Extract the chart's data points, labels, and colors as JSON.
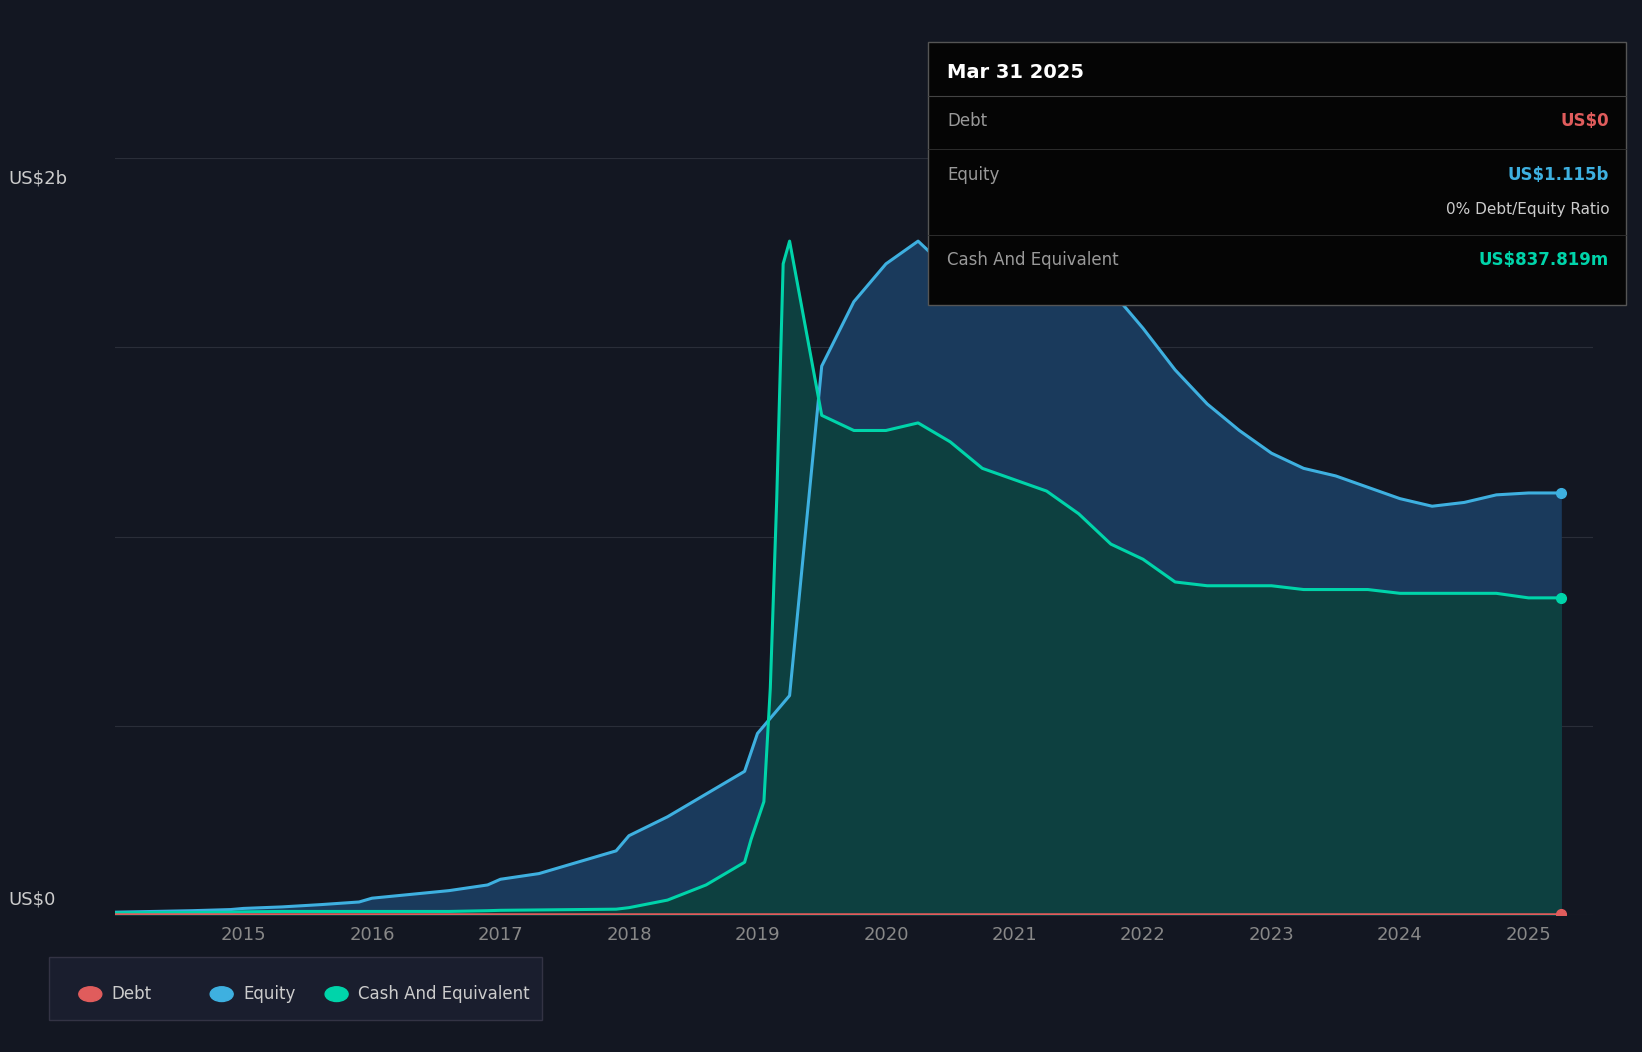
{
  "bg_color": "#131722",
  "plot_bg_color": "#131722",
  "grid_color": "#2a2e39",
  "debt_color": "#e05c5c",
  "equity_color": "#3eb0e0",
  "cash_color": "#00d4aa",
  "equity_fill_color": "#1a3a5c",
  "cash_fill_color": "#0d4040",
  "tooltip": {
    "date": "Mar 31 2025",
    "debt_label": "Debt",
    "debt_value": "US$0",
    "debt_value_color": "#e05c5c",
    "equity_label": "Equity",
    "equity_value": "US$1.115b",
    "equity_value_color": "#3eb0e0",
    "ratio_text": "0% Debt/Equity Ratio",
    "cash_label": "Cash And Equivalent",
    "cash_value": "US$837.819m",
    "cash_value_color": "#00d4aa"
  },
  "years": [
    2014.0,
    2014.3,
    2014.6,
    2014.9,
    2015.0,
    2015.3,
    2015.6,
    2015.9,
    2016.0,
    2016.3,
    2016.6,
    2016.9,
    2017.0,
    2017.3,
    2017.6,
    2017.9,
    2018.0,
    2018.3,
    2018.6,
    2018.9,
    2018.95,
    2019.0,
    2019.05,
    2019.1,
    2019.15,
    2019.2,
    2019.25,
    2019.5,
    2019.75,
    2020.0,
    2020.25,
    2020.5,
    2020.75,
    2021.0,
    2021.25,
    2021.5,
    2021.75,
    2022.0,
    2022.25,
    2022.5,
    2022.75,
    2023.0,
    2023.25,
    2023.5,
    2023.75,
    2024.0,
    2024.25,
    2024.5,
    2024.75,
    2025.0,
    2025.25
  ],
  "debt": [
    0.003,
    0.003,
    0.003,
    0.003,
    0.003,
    0.003,
    0.003,
    0.003,
    0.003,
    0.003,
    0.003,
    0.003,
    0.003,
    0.003,
    0.003,
    0.003,
    0.003,
    0.003,
    0.003,
    0.003,
    0.003,
    0.003,
    0.003,
    0.003,
    0.003,
    0.003,
    0.003,
    0.003,
    0.003,
    0.003,
    0.003,
    0.003,
    0.003,
    0.003,
    0.003,
    0.003,
    0.003,
    0.003,
    0.003,
    0.003,
    0.003,
    0.003,
    0.003,
    0.003,
    0.003,
    0.003,
    0.003,
    0.003,
    0.003,
    0.003,
    0.003
  ],
  "equity": [
    0.008,
    0.01,
    0.012,
    0.015,
    0.018,
    0.022,
    0.028,
    0.035,
    0.045,
    0.055,
    0.065,
    0.08,
    0.095,
    0.11,
    0.14,
    0.17,
    0.21,
    0.26,
    0.32,
    0.38,
    0.43,
    0.48,
    0.5,
    0.52,
    0.54,
    0.56,
    0.58,
    1.45,
    1.62,
    1.72,
    1.78,
    1.7,
    1.62,
    1.74,
    1.82,
    1.74,
    1.65,
    1.55,
    1.44,
    1.35,
    1.28,
    1.22,
    1.18,
    1.16,
    1.13,
    1.1,
    1.08,
    1.09,
    1.11,
    1.115,
    1.115
  ],
  "cash": [
    0.006,
    0.007,
    0.007,
    0.008,
    0.009,
    0.01,
    0.01,
    0.01,
    0.01,
    0.01,
    0.01,
    0.012,
    0.013,
    0.014,
    0.015,
    0.016,
    0.02,
    0.04,
    0.08,
    0.14,
    0.2,
    0.25,
    0.3,
    0.6,
    1.1,
    1.72,
    1.78,
    1.32,
    1.28,
    1.28,
    1.3,
    1.25,
    1.18,
    1.15,
    1.12,
    1.06,
    0.98,
    0.94,
    0.88,
    0.87,
    0.87,
    0.87,
    0.86,
    0.86,
    0.86,
    0.85,
    0.85,
    0.85,
    0.85,
    0.838,
    0.838
  ],
  "x_ticks": [
    2015,
    2016,
    2017,
    2018,
    2019,
    2020,
    2021,
    2022,
    2023,
    2024,
    2025
  ],
  "ylim": [
    0,
    2.0
  ],
  "xlim": [
    2014.0,
    2025.5
  ],
  "ylabel_top": "US$2b",
  "ylabel_bottom": "US$0",
  "legend_items": [
    {
      "label": "Debt",
      "color": "#e05c5c"
    },
    {
      "label": "Equity",
      "color": "#3eb0e0"
    },
    {
      "label": "Cash And Equivalent",
      "color": "#00d4aa"
    }
  ]
}
